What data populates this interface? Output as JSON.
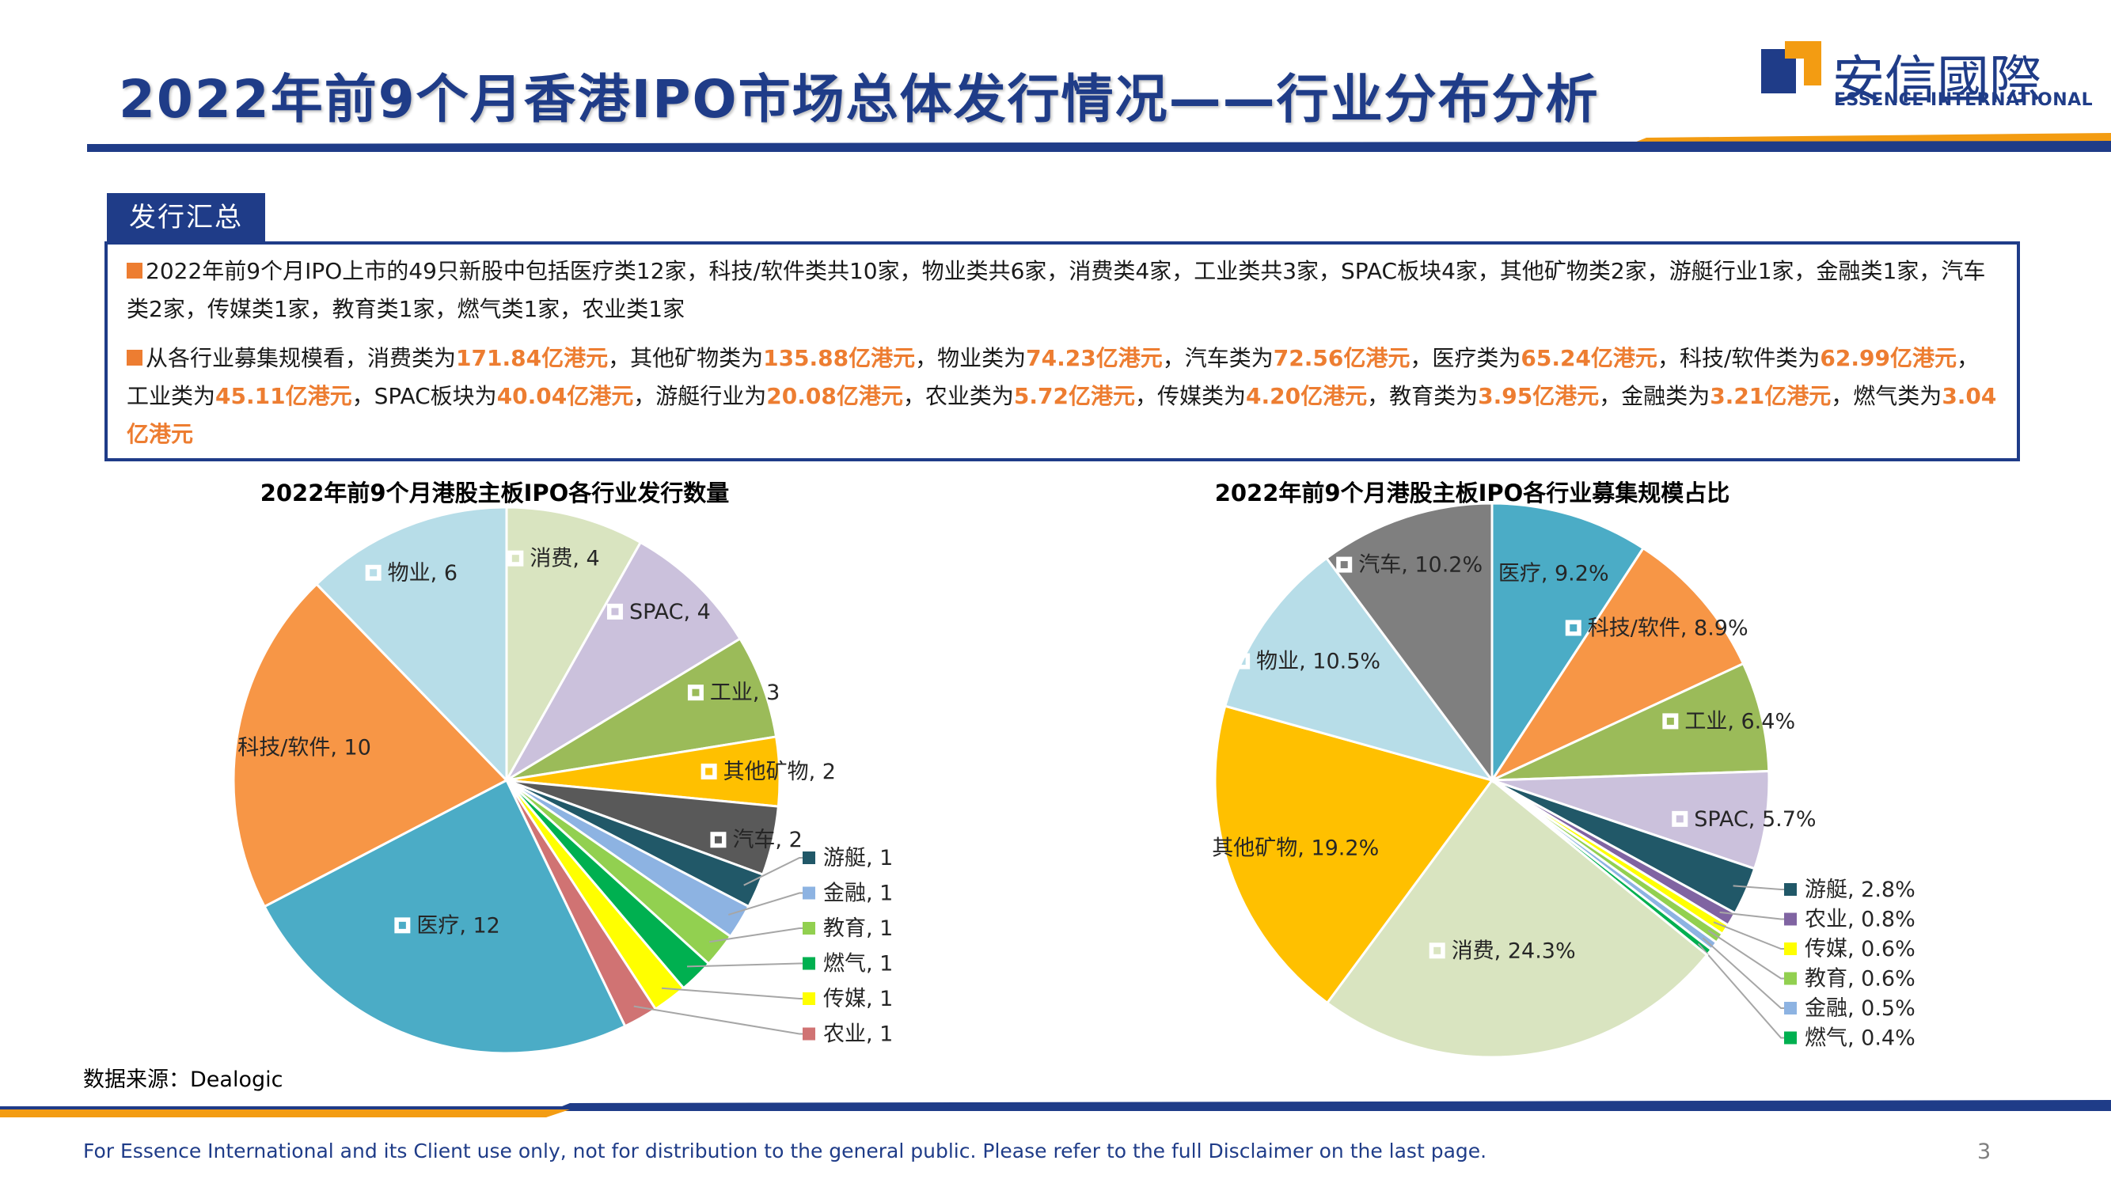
{
  "header": {
    "title": "2022年前9个月香港IPO市场总体发行情况——行业分布分析",
    "logo_cn": "安信國際",
    "logo_en": "ESSENCE INTERNATIONAL"
  },
  "summary": {
    "tab_label": "发行汇总",
    "p1": "2022年前9个月IPO上市的49只新股中包括医疗类12家，科技/软件类共10家，物业类共6家，消费类4家，工业类共3家，SPAC板块4家，其他矿物类2家，游艇行业1家，金融类1家，汽车类2家，传媒类1家，教育类1家，燃气类1家，农业类1家",
    "p2_parts": [
      {
        "t": "从各行业募集规模看，消费类为",
        "hl": false
      },
      {
        "t": "171.84亿港元",
        "hl": true
      },
      {
        "t": "，其他矿物类为",
        "hl": false
      },
      {
        "t": "135.88亿港元",
        "hl": true
      },
      {
        "t": "，物业类为",
        "hl": false
      },
      {
        "t": "74.23亿港元",
        "hl": true
      },
      {
        "t": "，汽车类为",
        "hl": false
      },
      {
        "t": "72.56亿港元",
        "hl": true
      },
      {
        "t": "，医疗类为",
        "hl": false
      },
      {
        "t": "65.24亿港元",
        "hl": true
      },
      {
        "t": "，科技/软件类为",
        "hl": false
      },
      {
        "t": "62.99亿港元",
        "hl": true
      },
      {
        "t": "，工业类为",
        "hl": false
      },
      {
        "t": "45.11亿港元",
        "hl": true
      },
      {
        "t": "，SPAC板块为",
        "hl": false
      },
      {
        "t": "40.04亿港元",
        "hl": true
      },
      {
        "t": "，游艇行业为",
        "hl": false
      },
      {
        "t": "20.08亿港元",
        "hl": true
      },
      {
        "t": "，农业类为",
        "hl": false
      },
      {
        "t": "5.72亿港元",
        "hl": true
      },
      {
        "t": "，传媒类为",
        "hl": false
      },
      {
        "t": "4.20亿港元",
        "hl": true
      },
      {
        "t": "，教育类为",
        "hl": false
      },
      {
        "t": "3.95亿港元",
        "hl": true
      },
      {
        "t": "，金融类为",
        "hl": false
      },
      {
        "t": "3.21亿港元",
        "hl": true
      },
      {
        "t": "，燃气类为",
        "hl": false
      },
      {
        "t": "3.04亿港元",
        "hl": true
      }
    ]
  },
  "chart_data": [
    {
      "type": "pie",
      "title": "2022年前9个月港股主板IPO各行业发行数量",
      "categories": [
        "消费",
        "SPAC",
        "工业",
        "其他矿物",
        "汽车",
        "游艇",
        "金融",
        "教育",
        "燃气",
        "传媒",
        "农业",
        "医疗",
        "科技/软件",
        "物业"
      ],
      "values": [
        4,
        4,
        3,
        2,
        2,
        1,
        1,
        1,
        1,
        1,
        1,
        12,
        10,
        6
      ],
      "labels": [
        "消费, 4",
        "SPAC, 4",
        "工业, 3",
        "其他矿物, 2",
        "汽车, 2",
        "游艇, 1",
        "金融, 1",
        "教育, 1",
        "燃气, 1",
        "传媒, 1",
        "农业, 1",
        "医疗, 12",
        "科技/软件, 10",
        "物业, 6"
      ],
      "colors": [
        "#d9e4c0",
        "#cbc1dc",
        "#9bbb59",
        "#ffc000",
        "#595959",
        "#215868",
        "#8db3e2",
        "#92d050",
        "#00b050",
        "#ffff00",
        "#d07373",
        "#4bacc6",
        "#f79646",
        "#b7dde8"
      ]
    },
    {
      "type": "pie",
      "title": "2022年前9个月港股主板IPO各行业募集规模占比",
      "categories": [
        "医疗",
        "科技/软件",
        "工业",
        "SPAC",
        "游艇",
        "农业",
        "传媒",
        "教育",
        "金融",
        "燃气",
        "消费",
        "其他矿物",
        "物业",
        "汽车"
      ],
      "values": [
        9.2,
        8.9,
        6.4,
        5.7,
        2.8,
        0.8,
        0.6,
        0.6,
        0.5,
        0.4,
        24.3,
        19.2,
        10.5,
        10.2
      ],
      "labels": [
        "医疗, 9.2%",
        "科技/软件, 8.9%",
        "工业, 6.4%",
        "SPAC, 5.7%",
        "游艇, 2.8%",
        "农业, 0.8%",
        "传媒, 0.6%",
        "教育, 0.6%",
        "金融, 0.5%",
        "燃气, 0.4%",
        "消费, 24.3%",
        "其他矿物, 19.2%",
        "物业, 10.5%",
        "汽车, 10.2%"
      ],
      "colors": [
        "#4bacc6",
        "#f79646",
        "#9bbb59",
        "#cbc1dc",
        "#215868",
        "#8064a2",
        "#ffff00",
        "#92d050",
        "#8db3e2",
        "#00b050",
        "#d9e4c0",
        "#ffc000",
        "#b7dde8",
        "#7f7f7f"
      ]
    }
  ],
  "source": "数据来源：Dealogic",
  "footer": "For Essence International and its Client use only, not for distribution to the general public. Please refer to the full Disclaimer on the last page.",
  "page_number": "3",
  "colors": {
    "navy": "#1f3c88",
    "orange": "#ed7d31",
    "logo_orange": "#f39c12"
  }
}
